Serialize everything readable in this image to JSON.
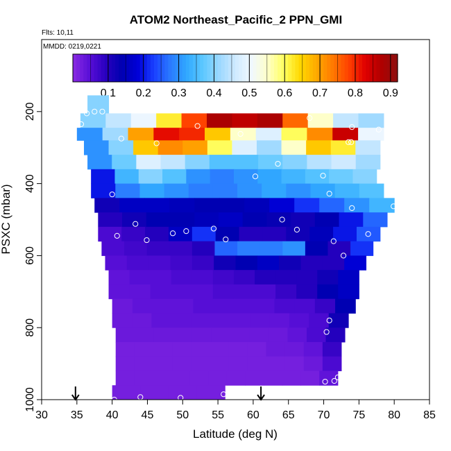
{
  "chart_data": {
    "type": "heatmap",
    "title": "ATOM2 Northeast_Pacific_2 PPN_GMI",
    "flights_text": "Flts: 10,11",
    "mmdd_text": "MMDD: 0219,0221",
    "xlabel": "Latitude (deg N)",
    "ylabel": "PSXC (mbar)",
    "xlim": [
      30,
      85
    ],
    "ylim": [
      1000,
      0
    ],
    "x_ticks": [
      "30",
      "35",
      "40",
      "45",
      "50",
      "55",
      "60",
      "65",
      "70",
      "75",
      "80",
      "85"
    ],
    "y_ticks": [
      "200",
      "400",
      "600",
      "800",
      "1000"
    ],
    "colorbar": {
      "range": [
        0,
        0.92
      ],
      "tick_labels": [
        "0.1",
        "0.2",
        "0.3",
        "0.4",
        "0.5",
        "0.6",
        "0.7",
        "0.8",
        "0.9"
      ],
      "colors": [
        "#8a2be2",
        "#5a0fd8",
        "#2a00c0",
        "#0000b0",
        "#0000d8",
        "#1a40ff",
        "#2a7aff",
        "#30a8ff",
        "#5cc8ff",
        "#9ad8ff",
        "#cfeaff",
        "#f0f8ff",
        "#ffffc8",
        "#ffff60",
        "#ffd800",
        "#ffaa00",
        "#ff7a00",
        "#ff4000",
        "#e00000",
        "#b00000",
        "#8c1010"
      ]
    },
    "pressure_levels": [
      180,
      230,
      260,
      300,
      340,
      380,
      420,
      460,
      500,
      540,
      580,
      620,
      660,
      700,
      740,
      780,
      820,
      860,
      900,
      940,
      980
    ],
    "rows": [
      {
        "p": 180,
        "lat_range": [
          36.5,
          39.5
        ],
        "values": [
          0.4,
          0.4
        ]
      },
      {
        "p": 230,
        "lat_range": [
          35.5,
          78.5
        ],
        "values": [
          0.4,
          0.45,
          0.5,
          0.62,
          0.78,
          0.88,
          0.86,
          0.88,
          0.75,
          0.55,
          0.45,
          0.42
        ]
      },
      {
        "p": 260,
        "lat_range": [
          35.0,
          78.5
        ],
        "values": [
          0.3,
          0.42,
          0.7,
          0.82,
          0.8,
          0.66,
          0.55,
          0.48,
          0.6,
          0.72,
          0.85,
          0.5
        ]
      },
      {
        "p": 300,
        "lat_range": [
          36.0,
          78.0
        ],
        "values": [
          0.3,
          0.4,
          0.66,
          0.72,
          0.7,
          0.6,
          0.48,
          0.42,
          0.55,
          0.66,
          0.62,
          0.45
        ]
      },
      {
        "p": 340,
        "lat_range": [
          36.5,
          78.0
        ],
        "values": [
          0.3,
          0.38,
          0.48,
          0.45,
          0.4,
          0.36,
          0.36,
          0.38,
          0.4,
          0.44,
          0.46,
          0.42
        ]
      },
      {
        "p": 380,
        "lat_range": [
          37.0,
          77.5
        ],
        "values": [
          0.2,
          0.34,
          0.4,
          0.36,
          0.3,
          0.28,
          0.3,
          0.32,
          0.34,
          0.36,
          0.38,
          0.4
        ]
      },
      {
        "p": 420,
        "lat_range": [
          37.0,
          78.5
        ],
        "values": [
          0.2,
          0.28,
          0.32,
          0.3,
          0.28,
          0.28,
          0.3,
          0.32,
          0.3,
          0.32,
          0.34,
          0.36
        ]
      },
      {
        "p": 460,
        "lat_range": [
          37.5,
          80.0
        ],
        "values": [
          0.12,
          0.16,
          0.16,
          0.15,
          0.14,
          0.14,
          0.15,
          0.18,
          0.22,
          0.26,
          0.3,
          0.34
        ]
      },
      {
        "p": 500,
        "lat_range": [
          38.0,
          79.0
        ],
        "values": [
          0.1,
          0.12,
          0.14,
          0.14,
          0.15,
          0.16,
          0.14,
          0.13,
          0.12,
          0.14,
          0.2,
          0.26
        ]
      },
      {
        "p": 540,
        "lat_range": [
          38.0,
          78.0
        ],
        "values": [
          0.06,
          0.08,
          0.1,
          0.16,
          0.22,
          0.14,
          0.1,
          0.1,
          0.12,
          0.15,
          0.2,
          0.25
        ]
      },
      {
        "p": 580,
        "lat_range": [
          38.5,
          77.0
        ],
        "values": [
          0.06,
          0.07,
          0.08,
          0.08,
          0.1,
          0.26,
          0.28,
          0.28,
          0.3,
          0.14,
          0.1,
          0.22
        ]
      },
      {
        "p": 620,
        "lat_range": [
          39.0,
          76.0
        ],
        "values": [
          0.05,
          0.06,
          0.06,
          0.07,
          0.08,
          0.12,
          0.14,
          0.16,
          0.12,
          0.1,
          0.1,
          0.18
        ]
      },
      {
        "p": 660,
        "lat_range": [
          39.5,
          75.0
        ],
        "values": [
          0.04,
          0.05,
          0.05,
          0.06,
          0.06,
          0.07,
          0.08,
          0.1,
          0.1,
          0.1,
          0.12,
          0.16
        ]
      },
      {
        "p": 700,
        "lat_range": [
          39.5,
          75.0
        ],
        "values": [
          0.04,
          0.04,
          0.05,
          0.05,
          0.05,
          0.06,
          0.06,
          0.06,
          0.08,
          0.1,
          0.14,
          0.16
        ]
      },
      {
        "p": 740,
        "lat_range": [
          40.0,
          74.5
        ],
        "values": [
          0.03,
          0.04,
          0.04,
          0.04,
          0.05,
          0.05,
          0.05,
          0.05,
          0.06,
          0.06,
          0.08,
          0.14
        ]
      },
      {
        "p": 780,
        "lat_range": [
          40.0,
          73.5
        ],
        "values": [
          0.03,
          0.03,
          0.04,
          0.04,
          0.04,
          0.04,
          0.04,
          0.04,
          0.04,
          0.05,
          0.06,
          0.12
        ]
      },
      {
        "p": 820,
        "lat_range": [
          40.5,
          73.0
        ],
        "values": [
          0.03,
          0.03,
          0.03,
          0.03,
          0.03,
          0.03,
          0.03,
          0.03,
          0.03,
          0.04,
          0.06,
          0.1
        ]
      },
      {
        "p": 860,
        "lat_range": [
          40.5,
          72.5
        ],
        "values": [
          0.02,
          0.02,
          0.02,
          0.02,
          0.02,
          0.02,
          0.02,
          0.02,
          0.03,
          0.03,
          0.04,
          0.08
        ]
      },
      {
        "p": 900,
        "lat_range": [
          40.5,
          72.5
        ],
        "values": [
          0.02,
          0.02,
          0.02,
          0.02,
          0.02,
          0.02,
          0.02,
          0.02,
          0.02,
          0.02,
          0.03,
          0.06
        ]
      },
      {
        "p": 940,
        "lat_range": [
          40.5,
          72.0
        ],
        "values": [
          0.02,
          0.02,
          0.02,
          0.02,
          0.02,
          0.02,
          0.02,
          0.02,
          0.02,
          0.02,
          0.02,
          0.04
        ]
      },
      {
        "p": 980,
        "lat_range": [
          40.0,
          56.0
        ],
        "values": [
          0.02,
          0.02,
          0.02,
          0.02
        ]
      }
    ],
    "observations": [
      {
        "lat": 35.6,
        "p": 235
      },
      {
        "lat": 36.4,
        "p": 205
      },
      {
        "lat": 37.5,
        "p": 200
      },
      {
        "lat": 38.6,
        "p": 200
      },
      {
        "lat": 41.3,
        "p": 275
      },
      {
        "lat": 46.3,
        "p": 288
      },
      {
        "lat": 52.1,
        "p": 240
      },
      {
        "lat": 58.2,
        "p": 262
      },
      {
        "lat": 63.5,
        "p": 345
      },
      {
        "lat": 60.3,
        "p": 380
      },
      {
        "lat": 68.0,
        "p": 218
      },
      {
        "lat": 69.9,
        "p": 378
      },
      {
        "lat": 74.0,
        "p": 243
      },
      {
        "lat": 77.8,
        "p": 250
      },
      {
        "lat": 73.5,
        "p": 285
      },
      {
        "lat": 73.9,
        "p": 285
      },
      {
        "lat": 40.0,
        "p": 430
      },
      {
        "lat": 70.8,
        "p": 428
      },
      {
        "lat": 74.0,
        "p": 468
      },
      {
        "lat": 79.9,
        "p": 463
      },
      {
        "lat": 43.3,
        "p": 512
      },
      {
        "lat": 64.1,
        "p": 500
      },
      {
        "lat": 66.2,
        "p": 528
      },
      {
        "lat": 40.7,
        "p": 545
      },
      {
        "lat": 44.9,
        "p": 557
      },
      {
        "lat": 48.6,
        "p": 538
      },
      {
        "lat": 50.5,
        "p": 532
      },
      {
        "lat": 54.4,
        "p": 525
      },
      {
        "lat": 56.1,
        "p": 555
      },
      {
        "lat": 71.4,
        "p": 560
      },
      {
        "lat": 72.8,
        "p": 600
      },
      {
        "lat": 76.3,
        "p": 540
      },
      {
        "lat": 70.8,
        "p": 780
      },
      {
        "lat": 70.4,
        "p": 812
      },
      {
        "lat": 70.2,
        "p": 950
      },
      {
        "lat": 71.5,
        "p": 948
      },
      {
        "lat": 72.0,
        "p": 938
      },
      {
        "lat": 40.3,
        "p": 1000
      },
      {
        "lat": 44.0,
        "p": 993
      },
      {
        "lat": 49.7,
        "p": 995
      },
      {
        "lat": 55.8,
        "p": 985
      }
    ],
    "arrows_lat": [
      34.8,
      61.1
    ]
  }
}
